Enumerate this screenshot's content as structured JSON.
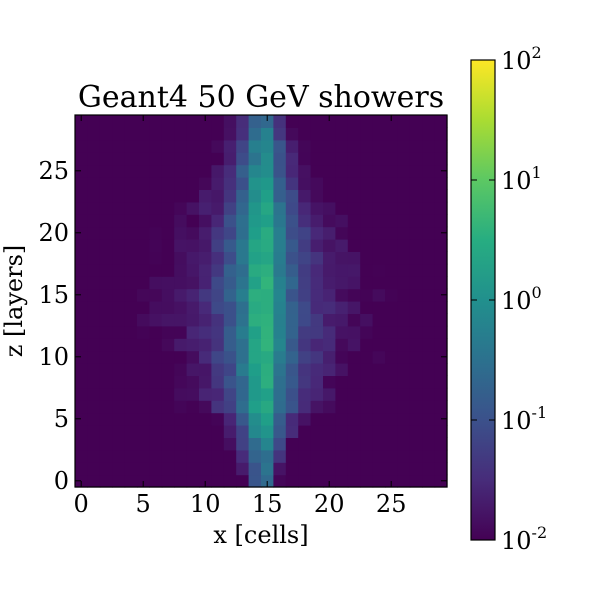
{
  "chart_data": {
    "type": "heatmap",
    "title": "Geant4 50 GeV showers",
    "xlabel": "x [cells]",
    "ylabel": "z [layers]",
    "x_ticks": [
      "0",
      "5",
      "10",
      "15",
      "20",
      "25"
    ],
    "y_ticks": [
      "0",
      "5",
      "10",
      "15",
      "20",
      "25"
    ],
    "xlim": [
      -0.5,
      29.5
    ],
    "ylim": [
      -0.5,
      29.5
    ],
    "n_cols": 30,
    "n_rows": 30,
    "colormap": "viridis",
    "color_scale": "log",
    "colorbar": {
      "min": 0.01,
      "max": 100,
      "ticks": [
        {
          "base": "10",
          "exp": "-2",
          "value": 0.01
        },
        {
          "base": "10",
          "exp": "-1",
          "value": 0.1
        },
        {
          "base": "10",
          "exp": "0",
          "value": 1
        },
        {
          "base": "10",
          "exp": "1",
          "value": 10
        },
        {
          "base": "10",
          "exp": "2",
          "value": 100
        }
      ]
    },
    "profile": {
      "center_x": 14.6,
      "core_width_cells": 1.6,
      "peak_layer": 14,
      "log10_peak": 1.35,
      "log10_floor": -2.0
    }
  }
}
